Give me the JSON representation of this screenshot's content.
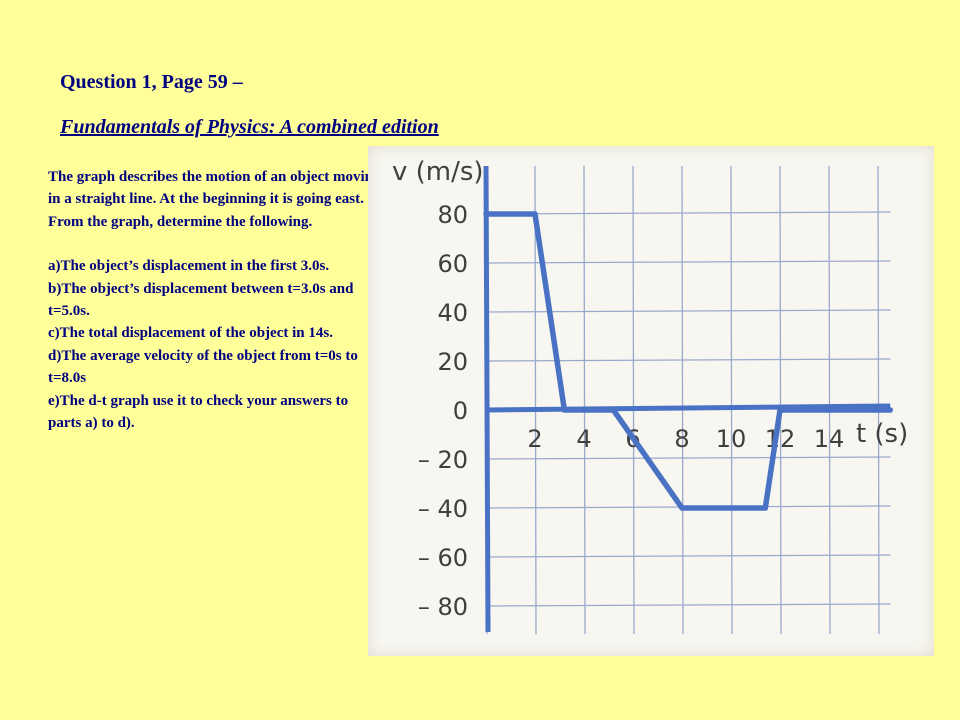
{
  "header": {
    "title": "Question 1, Page 59 –",
    "subtitle": "Fundamentals of Physics: A combined edition"
  },
  "question": {
    "intro": "The graph describes the motion of an object moving in a straight line.  At the beginning it is going east.  From the graph, determine the following.",
    "parts": [
      "a)The object’s displacement in the first 3.0s.",
      "b)The object’s displacement between t=3.0s and t=5.0s.",
      "c)The total displacement of the object in 14s.",
      "d)The average velocity of the object from t=0s to t=8.0s",
      "e)The d-t graph use it to check your answers to parts a) to d)."
    ]
  },
  "chart_data": {
    "type": "line",
    "ylabel": "v (m/s)",
    "xlabel": "t (s)",
    "xlim": [
      0,
      16.5
    ],
    "ylim": [
      -90,
      90
    ],
    "grid": true,
    "x_ticks": [
      2,
      4,
      6,
      8,
      10,
      12,
      14
    ],
    "y_ticks": [
      80,
      60,
      40,
      20,
      0,
      -20,
      -40,
      -60,
      -80
    ],
    "y_tick_labels": [
      "80",
      "60",
      "40",
      "20",
      "0",
      "– 20",
      "– 40",
      "– 60",
      "– 80"
    ],
    "series": [
      {
        "x": [
          0,
          2,
          3.2,
          5.2,
          8,
          11.4,
          12,
          16.5
        ],
        "y": [
          80,
          80,
          0,
          0,
          -40,
          -40,
          0,
          0
        ],
        "color": "#4a72c4"
      }
    ]
  }
}
